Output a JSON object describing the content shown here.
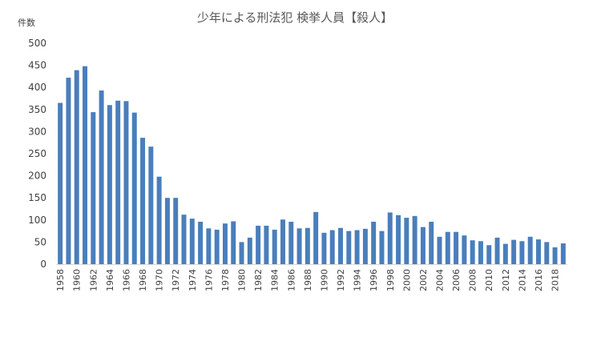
{
  "chart_data": {
    "type": "bar",
    "title": "少年による刑法犯 検挙人員【殺人】",
    "ylabel": "件数",
    "xlabel": "",
    "ylim": [
      0,
      500
    ],
    "y_ticks": [
      0,
      50,
      100,
      150,
      200,
      250,
      300,
      350,
      400,
      450,
      500
    ],
    "grid": false,
    "legend": "none",
    "bar_color": "#4a7ebb",
    "categories": [
      "1958",
      "1959",
      "1960",
      "1961",
      "1962",
      "1963",
      "1964",
      "1965",
      "1966",
      "1967",
      "1968",
      "1969",
      "1970",
      "1971",
      "1972",
      "1973",
      "1974",
      "1975",
      "1976",
      "1977",
      "1978",
      "1979",
      "1980",
      "1981",
      "1982",
      "1983",
      "1984",
      "1985",
      "1986",
      "1987",
      "1988",
      "1989",
      "1990",
      "1991",
      "1992",
      "1993",
      "1994",
      "1995",
      "1996",
      "1997",
      "1998",
      "1999",
      "2000",
      "2001",
      "2002",
      "2003",
      "2004",
      "2005",
      "2006",
      "2007",
      "2008",
      "2009",
      "2010",
      "2011",
      "2012",
      "2013",
      "2014",
      "2015",
      "2016",
      "2017",
      "2018",
      "2019"
    ],
    "tick_labels": [
      "1958",
      "1960",
      "1962",
      "1964",
      "1966",
      "1968",
      "1970",
      "1972",
      "1974",
      "1976",
      "1978",
      "1980",
      "1982",
      "1984",
      "1986",
      "1988",
      "1990",
      "1992",
      "1994",
      "1996",
      "1998",
      "2000",
      "2002",
      "2004",
      "2006",
      "2008",
      "2010",
      "2012",
      "2014",
      "2016",
      "2018"
    ],
    "values": [
      365,
      422,
      439,
      448,
      344,
      393,
      360,
      370,
      369,
      343,
      286,
      266,
      198,
      150,
      150,
      112,
      103,
      96,
      81,
      78,
      92,
      97,
      50,
      60,
      87,
      87,
      78,
      101,
      96,
      81,
      82,
      118,
      71,
      77,
      82,
      75,
      77,
      80,
      96,
      75,
      117,
      111,
      105,
      109,
      84,
      96,
      62,
      73,
      73,
      65,
      54,
      52,
      43,
      60,
      46,
      55,
      52,
      62,
      56,
      50,
      38,
      47
    ]
  }
}
